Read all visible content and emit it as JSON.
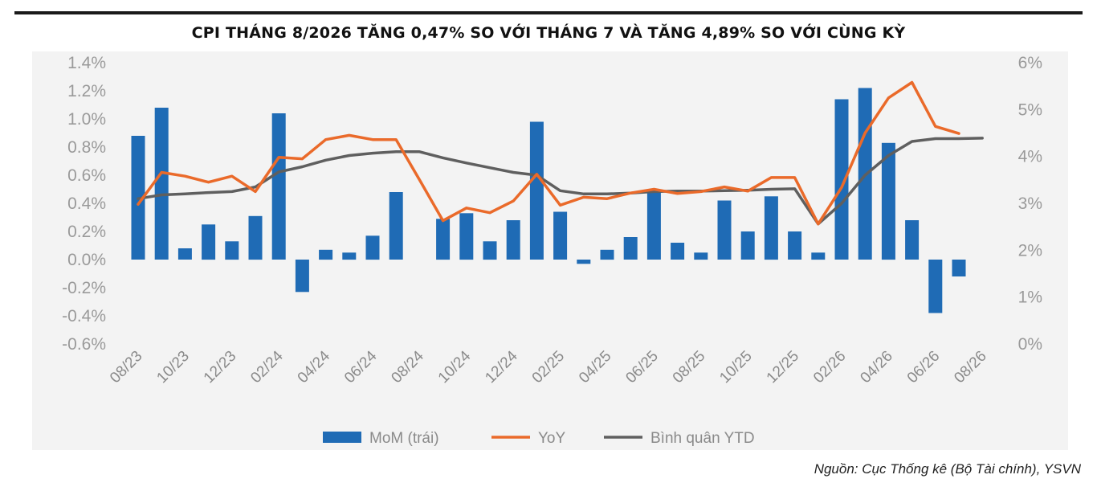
{
  "title": "CPI THÁNG 8/2026 TĂNG 0,47% SO VỚI THÁNG 7 VÀ TĂNG 4,89% SO VỚI CÙNG KỲ",
  "source": "Nguồn: Cục Thống kê (Bộ Tài chính), YSVN",
  "colors": {
    "mom": "#1f6bb5",
    "yoy": "#ea6a2a",
    "ytd": "#5f5f5f",
    "tick": "#9a9a9a"
  },
  "chart_data": {
    "type": "bar",
    "months": [
      "08/23",
      "09/23",
      "10/23",
      "11/23",
      "12/23",
      "01/24",
      "02/24",
      "03/24",
      "04/24",
      "05/24",
      "06/24",
      "07/24",
      "08/24",
      "09/24",
      "10/24",
      "11/24",
      "12/24",
      "01/25",
      "02/25",
      "03/25",
      "04/25",
      "05/25",
      "06/25",
      "07/25",
      "08/25",
      "09/25",
      "10/25",
      "11/25",
      "12/25",
      "01/26",
      "02/26",
      "03/26",
      "04/26",
      "05/26",
      "06/26",
      "07/26",
      "08/26"
    ],
    "x_tick_labels": [
      "08/23",
      "10/23",
      "12/23",
      "02/24",
      "04/24",
      "06/24",
      "08/24",
      "10/24",
      "12/24",
      "02/25",
      "04/25",
      "06/25",
      "08/25",
      "10/25",
      "12/25",
      "02/26",
      "04/26",
      "06/26",
      "08/26"
    ],
    "series": [
      {
        "name": "MoM (trái)",
        "type": "bar",
        "axis": "left",
        "values": [
          0.88,
          1.08,
          0.08,
          0.25,
          0.13,
          0.31,
          1.04,
          -0.23,
          0.07,
          0.05,
          0.17,
          0.48,
          null,
          0.29,
          0.33,
          0.13,
          0.28,
          0.98,
          0.34,
          -0.03,
          0.07,
          0.16,
          0.48,
          0.12,
          0.05,
          0.42,
          0.2,
          0.45,
          0.2,
          0.05,
          1.14,
          1.22,
          0.83,
          0.28,
          -0.38,
          -0.12,
          null
        ]
      },
      {
        "name": "YoY",
        "type": "line",
        "axis": "right",
        "values": [
          2.98,
          3.66,
          3.58,
          3.45,
          3.58,
          3.25,
          3.98,
          3.95,
          4.36,
          4.45,
          4.36,
          4.36,
          3.5,
          2.63,
          2.9,
          2.8,
          3.05,
          3.62,
          2.96,
          3.13,
          3.1,
          3.22,
          3.3,
          3.21,
          3.25,
          3.35,
          3.26,
          3.55,
          3.55,
          2.56,
          3.34,
          4.5,
          5.25,
          5.58,
          4.64,
          4.49,
          null
        ]
      },
      {
        "name": "Bình quân YTD",
        "type": "line",
        "axis": "right",
        "values": [
          3.1,
          3.18,
          3.2,
          3.23,
          3.25,
          3.35,
          3.67,
          3.78,
          3.92,
          4.02,
          4.07,
          4.1,
          4.1,
          3.97,
          3.86,
          3.76,
          3.66,
          3.6,
          3.27,
          3.2,
          3.2,
          3.22,
          3.25,
          3.26,
          3.26,
          3.27,
          3.28,
          3.3,
          3.31,
          2.56,
          3.0,
          3.6,
          4.02,
          4.32,
          4.38,
          4.38,
          4.39
        ]
      }
    ],
    "y_left": {
      "ticks": [
        "1.4%",
        "1.2%",
        "1.0%",
        "0.8%",
        "0.6%",
        "0.4%",
        "0.2%",
        "0.0%",
        "-0.2%",
        "-0.4%",
        "-0.6%"
      ],
      "ylim": [
        -0.6,
        1.4
      ]
    },
    "y_right": {
      "ticks": [
        "6%",
        "5%",
        "4%",
        "3%",
        "2%",
        "1%",
        "0%"
      ],
      "ylim": [
        0,
        6
      ]
    },
    "legend": {
      "placement": "bottom",
      "items": [
        "MoM (trái)",
        "YoY",
        "Bình quân YTD"
      ]
    },
    "grid": false
  }
}
